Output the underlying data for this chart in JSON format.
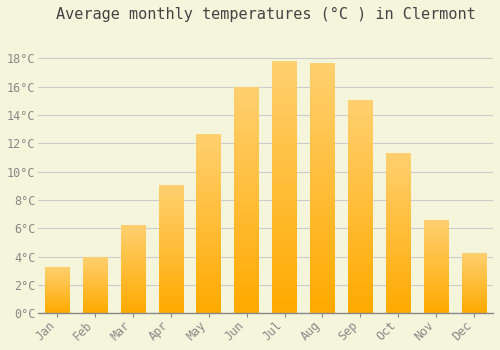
{
  "title": "Average monthly temperatures (°C ) in Clermont",
  "months": [
    "Jan",
    "Feb",
    "Mar",
    "Apr",
    "May",
    "Jun",
    "Jul",
    "Aug",
    "Sep",
    "Oct",
    "Nov",
    "Dec"
  ],
  "values": [
    3.2,
    3.9,
    6.2,
    9.0,
    12.6,
    15.9,
    17.8,
    17.6,
    15.0,
    11.3,
    6.5,
    4.2
  ],
  "bar_color_light": "#FFD070",
  "bar_color_dark": "#FFAA00",
  "background_color": "#F5F5DC",
  "grid_color": "#CCCCCC",
  "ylim": [
    0,
    20
  ],
  "yticks": [
    0,
    2,
    4,
    6,
    8,
    10,
    12,
    14,
    16,
    18
  ],
  "ylabel_suffix": "°C",
  "title_fontsize": 11,
  "tick_fontsize": 8.5,
  "font_family": "monospace"
}
